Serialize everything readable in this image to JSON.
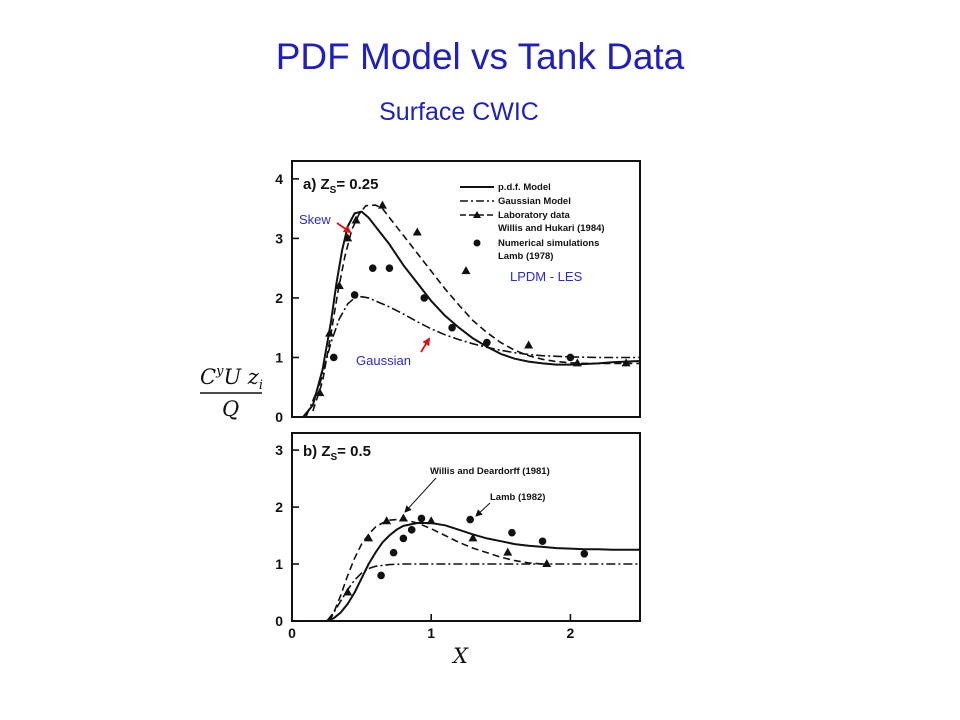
{
  "slide": {
    "title": "PDF Model vs Tank Data",
    "subtitle": "Surface CWIC"
  },
  "colors": {
    "title": "#1f1fbf",
    "annotation_text": "#2a2ad0",
    "arrow": "#e01010",
    "ink": "#111111"
  },
  "chart_data": [
    {
      "type": "line",
      "panel_label": "a) Z",
      "panel_sub": "S",
      "panel_value": "= 0.25",
      "xlabel": "X",
      "ylabel": "CyUzi/Q",
      "xlim": [
        0,
        2.5
      ],
      "ylim": [
        0,
        4.3
      ],
      "x_ticks": [],
      "y_ticks": [
        "0",
        "1",
        "2",
        "3",
        "4"
      ],
      "legend": [
        "p.d.f. Model",
        "Gaussian Model",
        "Laboratory data",
        "Willis and Hukari (1984)",
        "Numerical simulations",
        "Lamb (1978)"
      ],
      "annotations": [
        "Skew",
        "Gaussian",
        "LPDM - LES"
      ],
      "series": [
        {
          "name": "p.d.f. Model",
          "style": "solid",
          "x": [
            0.08,
            0.15,
            0.22,
            0.28,
            0.32,
            0.36,
            0.4,
            0.45,
            0.5,
            0.55,
            0.6,
            0.7,
            0.8,
            0.9,
            1.0,
            1.1,
            1.2,
            1.3,
            1.4,
            1.5,
            1.6,
            1.7,
            1.8,
            1.9,
            2.0,
            2.1,
            2.2,
            2.3,
            2.4,
            2.5
          ],
          "y": [
            0,
            0.2,
            0.8,
            1.6,
            2.25,
            2.8,
            3.2,
            3.42,
            3.45,
            3.35,
            3.2,
            2.9,
            2.55,
            2.25,
            1.95,
            1.7,
            1.5,
            1.32,
            1.18,
            1.06,
            0.98,
            0.93,
            0.9,
            0.88,
            0.88,
            0.89,
            0.9,
            0.92,
            0.93,
            0.94
          ]
        },
        {
          "name": "Gaussian Model",
          "style": "dashdot",
          "x": [
            0.1,
            0.2,
            0.28,
            0.34,
            0.4,
            0.45,
            0.5,
            0.55,
            0.6,
            0.7,
            0.8,
            0.9,
            1.0,
            1.1,
            1.2,
            1.3,
            1.4,
            1.5,
            1.6,
            1.7,
            1.8,
            1.9,
            2.0,
            2.2,
            2.5
          ],
          "y": [
            0,
            0.55,
            1.25,
            1.65,
            1.9,
            2.0,
            2.02,
            2.0,
            1.95,
            1.85,
            1.73,
            1.6,
            1.48,
            1.38,
            1.3,
            1.23,
            1.17,
            1.12,
            1.08,
            1.05,
            1.03,
            1.02,
            1.01,
            1.0,
            1.0
          ]
        },
        {
          "name": "Laboratory data",
          "style": "dashed",
          "x": [
            0.15,
            0.22,
            0.28,
            0.33,
            0.38,
            0.43,
            0.48,
            0.53,
            0.6,
            0.65,
            0.7,
            0.8,
            0.9,
            1.0,
            1.1,
            1.2,
            1.3,
            1.4,
            1.5,
            1.6,
            1.7,
            1.8,
            1.9,
            2.0,
            2.1,
            2.2,
            2.3,
            2.4,
            2.5
          ],
          "y": [
            0.1,
            0.6,
            1.4,
            2.1,
            2.7,
            3.15,
            3.4,
            3.55,
            3.56,
            3.5,
            3.35,
            3.05,
            2.75,
            2.45,
            2.15,
            1.88,
            1.62,
            1.42,
            1.25,
            1.12,
            1.03,
            0.97,
            0.93,
            0.91,
            0.9,
            0.9,
            0.9,
            0.9,
            0.9
          ]
        },
        {
          "name": "Willis and Hukari (1984)",
          "style": "triangles",
          "x": [
            0.2,
            0.27,
            0.34,
            0.4,
            0.46,
            0.65,
            0.9,
            1.25,
            1.7,
            2.05,
            2.4
          ],
          "y": [
            0.4,
            1.4,
            2.2,
            3.0,
            3.3,
            3.55,
            3.1,
            2.45,
            1.2,
            0.9,
            0.9
          ]
        },
        {
          "name": "Lamb (1978)",
          "style": "dots",
          "x": [
            0.3,
            0.45,
            0.58,
            0.7,
            0.95,
            1.15,
            1.4,
            2.0
          ],
          "y": [
            1.0,
            2.05,
            2.5,
            2.5,
            2.0,
            1.5,
            1.25,
            1.0
          ]
        }
      ]
    },
    {
      "type": "line",
      "panel_label": "b) Z",
      "panel_sub": "S",
      "panel_value": "= 0.5",
      "xlabel": "X",
      "ylabel": "",
      "xlim": [
        0,
        2.5
      ],
      "ylim": [
        0,
        3.3
      ],
      "x_ticks": [
        "0",
        "1",
        "2"
      ],
      "y_ticks": [
        "0",
        "1",
        "2",
        "3"
      ],
      "legend": [
        "Willis and Deardorff (1981)",
        "Lamb (1982)"
      ],
      "series": [
        {
          "name": "p.d.f. Model",
          "style": "solid",
          "x": [
            0.25,
            0.3,
            0.35,
            0.4,
            0.45,
            0.5,
            0.55,
            0.6,
            0.65,
            0.7,
            0.75,
            0.8,
            0.9,
            1.0,
            1.1,
            1.2,
            1.3,
            1.4,
            1.5,
            1.6,
            1.7,
            1.8,
            1.9,
            2.0,
            2.1,
            2.2,
            2.3,
            2.4,
            2.5
          ],
          "y": [
            0,
            0.05,
            0.15,
            0.3,
            0.5,
            0.75,
            1.0,
            1.2,
            1.38,
            1.5,
            1.6,
            1.67,
            1.72,
            1.72,
            1.68,
            1.6,
            1.52,
            1.45,
            1.4,
            1.35,
            1.32,
            1.3,
            1.28,
            1.27,
            1.26,
            1.26,
            1.25,
            1.25,
            1.25
          ]
        },
        {
          "name": "Gaussian Model",
          "style": "dashdot",
          "x": [
            0.25,
            0.3,
            0.35,
            0.4,
            0.45,
            0.5,
            0.55,
            0.6,
            0.7,
            0.8,
            0.9,
            1.0,
            1.2,
            1.5,
            1.8,
            2.1,
            2.5
          ],
          "y": [
            0,
            0.15,
            0.35,
            0.55,
            0.72,
            0.84,
            0.92,
            0.96,
            0.99,
            1.0,
            1.0,
            1.0,
            1.0,
            1.0,
            1.0,
            1.0,
            1.0
          ]
        },
        {
          "name": "Laboratory data",
          "style": "dashed",
          "x": [
            0.27,
            0.3,
            0.35,
            0.4,
            0.45,
            0.5,
            0.55,
            0.6,
            0.65,
            0.7,
            0.75,
            0.8,
            0.85,
            0.9,
            1.0,
            1.1,
            1.2,
            1.3,
            1.4,
            1.5,
            1.6,
            1.7,
            1.8,
            1.85
          ],
          "y": [
            0,
            0.15,
            0.45,
            0.8,
            1.1,
            1.35,
            1.52,
            1.65,
            1.72,
            1.77,
            1.78,
            1.77,
            1.75,
            1.72,
            1.62,
            1.5,
            1.38,
            1.28,
            1.2,
            1.12,
            1.06,
            1.02,
            1.0,
            1.0
          ]
        },
        {
          "name": "Willis and Deardorff (1981)",
          "style": "triangles",
          "x": [
            0.4,
            0.55,
            0.68,
            0.8,
            1.0,
            1.3,
            1.55,
            1.83
          ],
          "y": [
            0.5,
            1.45,
            1.75,
            1.8,
            1.75,
            1.45,
            1.2,
            1.0
          ]
        },
        {
          "name": "Lamb (1982)",
          "style": "dots",
          "x": [
            0.64,
            0.73,
            0.8,
            0.86,
            0.93,
            1.28,
            1.58,
            1.8,
            2.1
          ],
          "y": [
            0.8,
            1.2,
            1.45,
            1.6,
            1.8,
            1.78,
            1.55,
            1.4,
            1.18
          ]
        }
      ]
    }
  ]
}
